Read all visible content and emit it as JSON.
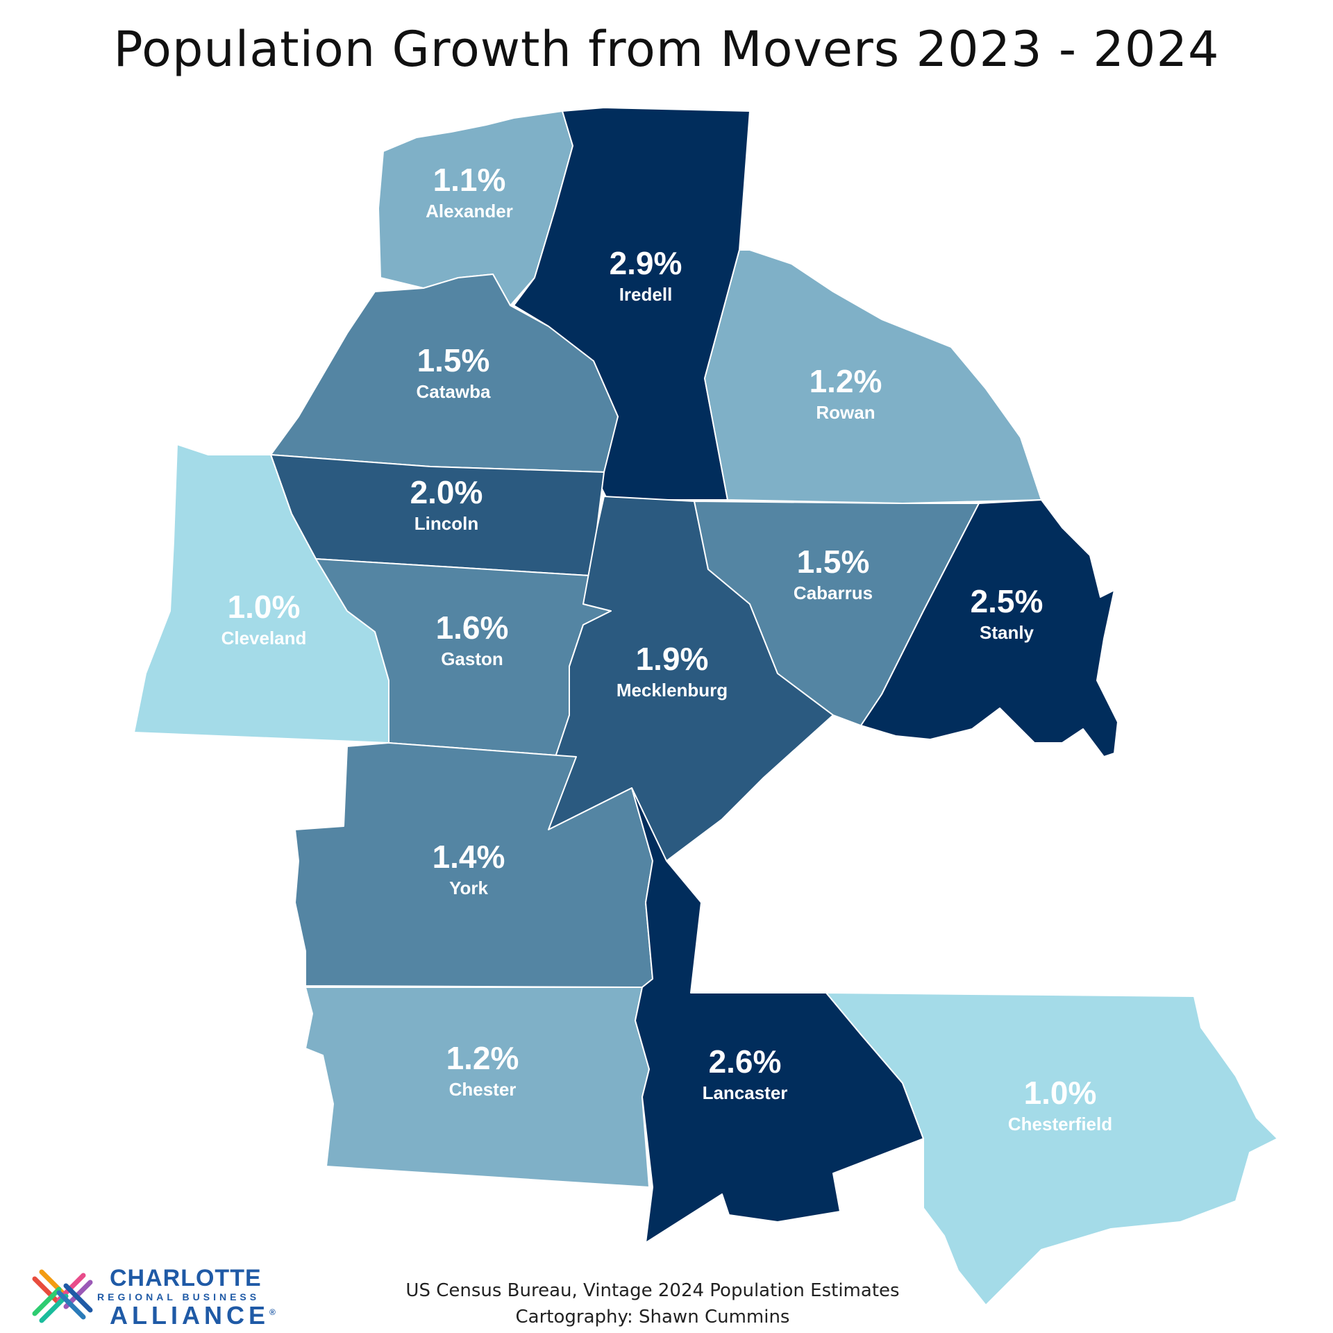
{
  "title": "Population Growth from Movers 2023 - 2024",
  "colors": {
    "light": "#a4dbe8",
    "light_mid": "#7fb0c7",
    "mid": "#5485a3",
    "dark_mid": "#2b5a80",
    "dark": "#012d5c"
  },
  "counties": [
    {
      "name": "Alexander",
      "value": "1.1%",
      "color": "#7fb0c7"
    },
    {
      "name": "Iredell",
      "value": "2.9%",
      "color": "#012d5c"
    },
    {
      "name": "Catawba",
      "value": "1.5%",
      "color": "#5485a3"
    },
    {
      "name": "Rowan",
      "value": "1.2%",
      "color": "#7fb0c7"
    },
    {
      "name": "Lincoln",
      "value": "2.0%",
      "color": "#2b5a80"
    },
    {
      "name": "Cleveland",
      "value": "1.0%",
      "color": "#a4dbe8"
    },
    {
      "name": "Gaston",
      "value": "1.6%",
      "color": "#5485a3"
    },
    {
      "name": "Mecklenburg",
      "value": "1.9%",
      "color": "#2b5a80"
    },
    {
      "name": "Cabarrus",
      "value": "1.5%",
      "color": "#5485a3"
    },
    {
      "name": "Stanly",
      "value": "2.5%",
      "color": "#012d5c"
    },
    {
      "name": "York",
      "value": "1.4%",
      "color": "#5485a3"
    },
    {
      "name": "Chester",
      "value": "1.2%",
      "color": "#7fb0c7"
    },
    {
      "name": "Lancaster",
      "value": "2.6%",
      "color": "#012d5c"
    },
    {
      "name": "Chesterfield",
      "value": "1.0%",
      "color": "#a4dbe8"
    }
  ],
  "source": {
    "line1": "US Census Bureau, Vintage 2024 Population Estimates",
    "line2": "Cartography: Shawn Cummins"
  },
  "logo": {
    "line1": "CHARLOTTE",
    "line2": "REGIONAL BUSINESS",
    "line3": "ALLIANCE",
    "mark": "®"
  }
}
